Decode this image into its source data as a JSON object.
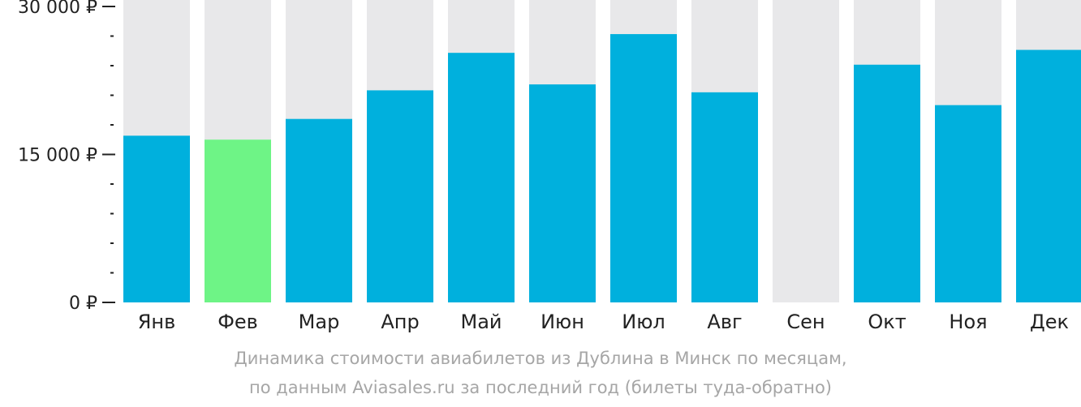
{
  "chart_data": {
    "type": "bar",
    "categories": [
      "Янв",
      "Фев",
      "Мар",
      "Апр",
      "Май",
      "Июн",
      "Июл",
      "Авг",
      "Сен",
      "Окт",
      "Ноя",
      "Дек"
    ],
    "values": [
      16900,
      16500,
      18600,
      21500,
      25300,
      22100,
      27200,
      21300,
      null,
      24100,
      20000,
      25600
    ],
    "ylim": [
      0,
      30000
    ],
    "yticks": [
      {
        "value": 0,
        "label": "0 ₽"
      },
      {
        "value": 15000,
        "label": "15 000 ₽"
      },
      {
        "value": 30000,
        "label": "30 000 ₽"
      }
    ],
    "minor_tick_step": 3000,
    "highlight_index": 1,
    "colors": {
      "bar": "#00b0dd",
      "highlight": "#6ef486",
      "background_bar": "#e8e8ea",
      "axis": "#222222"
    },
    "caption_line1": "Динамика стоимости авиабилетов из Дублина в Минск по месяцам,",
    "caption_line2": "по данным Aviasales.ru за последний год (билеты туда-обратно)"
  }
}
